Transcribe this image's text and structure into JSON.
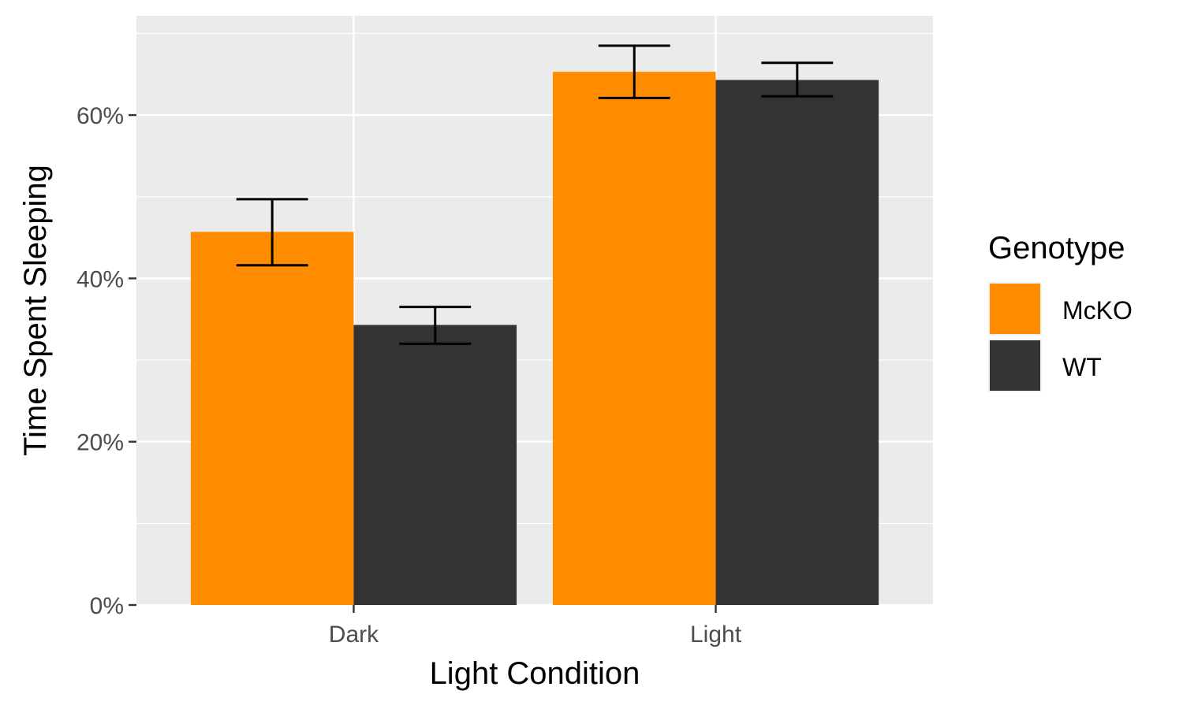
{
  "chart_data": {
    "type": "bar",
    "categories": [
      "Dark",
      "Light"
    ],
    "series": [
      {
        "name": "McKO",
        "color": "#FF8C00",
        "values": [
          0.457,
          0.653
        ],
        "error_low": [
          0.416,
          0.621
        ],
        "error_high": [
          0.497,
          0.685
        ]
      },
      {
        "name": "WT",
        "color": "#333333",
        "values": [
          0.343,
          0.643
        ],
        "error_low": [
          0.32,
          0.623
        ],
        "error_high": [
          0.365,
          0.664
        ]
      }
    ],
    "xlabel": "Light Condition",
    "ylabel": "Time Spent Sleeping",
    "ylim": [
      0,
      0.7
    ],
    "yticks": [
      {
        "value": 0,
        "label": "0%"
      },
      {
        "value": 0.2,
        "label": "20%"
      },
      {
        "value": 0.4,
        "label": "40%"
      },
      {
        "value": 0.6,
        "label": "60%"
      }
    ],
    "grid": true,
    "legend": {
      "title": "Genotype",
      "position": "right"
    },
    "panel_background": "#EBEBEB"
  }
}
